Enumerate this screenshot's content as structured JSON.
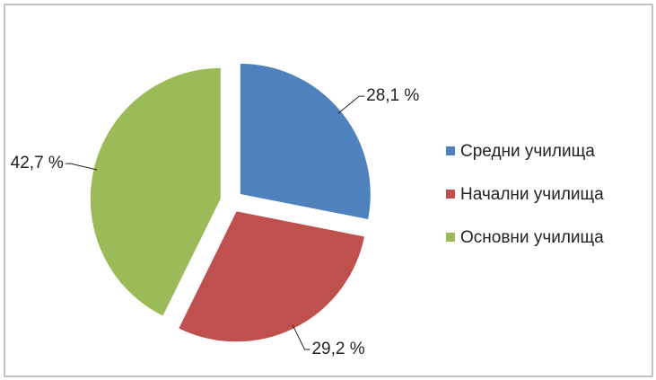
{
  "chart_data": {
    "type": "pie",
    "categories": [
      "Средни училища",
      "Начални училища",
      "Основни училища"
    ],
    "values": [
      28.1,
      29.2,
      42.7
    ],
    "value_labels": [
      "28,1 %",
      "29,2 %",
      "42,7 %"
    ],
    "colors": [
      "#4f81bd",
      "#c0504d",
      "#9bbb59"
    ],
    "legend": "right"
  }
}
